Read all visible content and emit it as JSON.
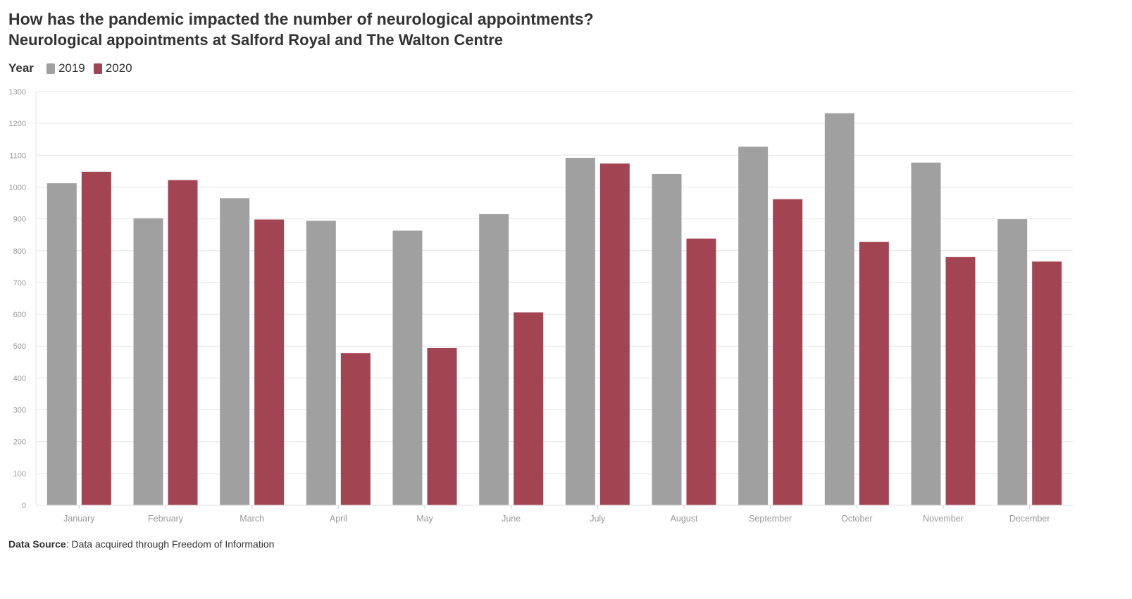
{
  "chart_data": {
    "type": "bar",
    "title": "How has the pandemic impacted the number of neurological appointments?",
    "subtitle": "Neurological appointments at Salford Royal and The Walton Centre",
    "legend_title": "Year",
    "legend_placement": "top-left",
    "categories": [
      "January",
      "February",
      "March",
      "April",
      "May",
      "June",
      "July",
      "August",
      "September",
      "October",
      "November",
      "December"
    ],
    "series": [
      {
        "name": "2019",
        "color": "#a0a0a0",
        "values": [
          1012,
          902,
          965,
          894,
          863,
          915,
          1092,
          1041,
          1127,
          1232,
          1077,
          899
        ]
      },
      {
        "name": "2020",
        "color": "#a34452",
        "values": [
          1048,
          1022,
          898,
          478,
          494,
          606,
          1074,
          838,
          962,
          828,
          780,
          766
        ]
      }
    ],
    "ylim": [
      0,
      1300
    ],
    "yticks": [
      0,
      100,
      200,
      300,
      400,
      500,
      600,
      700,
      800,
      900,
      1000,
      1100,
      1200,
      1300
    ],
    "grid": true,
    "xlabel": "",
    "ylabel": ""
  },
  "footer": {
    "source_label": "Data Source",
    "source_text": ": Data acquired through Freedom of Information"
  }
}
